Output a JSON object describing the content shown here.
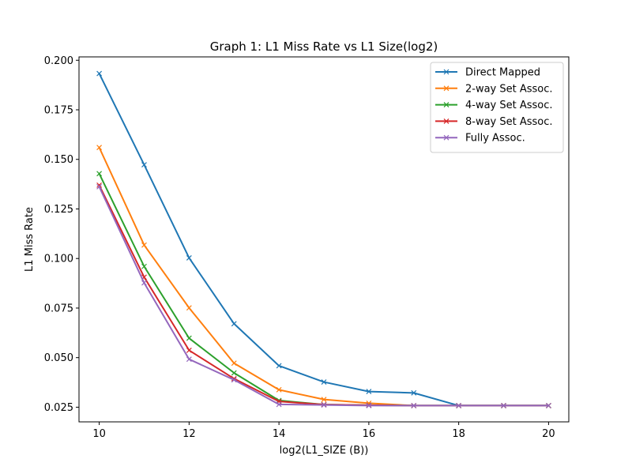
{
  "chart_data": {
    "type": "line",
    "title": "Graph 1: L1 Miss Rate vs L1 Size(log2)",
    "xlabel": "log2(L1_SIZE (B))",
    "ylabel": "L1 Miss Rate",
    "xlim": [
      9.55,
      20.45
    ],
    "ylim": [
      0.0176,
      0.2017
    ],
    "xticks": [
      10,
      12,
      14,
      16,
      18,
      20
    ],
    "xtick_labels": [
      "10",
      "12",
      "14",
      "16",
      "18",
      "20"
    ],
    "yticks": [
      0.025,
      0.05,
      0.075,
      0.1,
      0.125,
      0.15,
      0.175,
      0.2
    ],
    "ytick_labels": [
      "0.025",
      "0.050",
      "0.075",
      "0.100",
      "0.125",
      "0.150",
      "0.175",
      "0.200"
    ],
    "grid": false,
    "legend_position": "top-right",
    "marker": "x",
    "x": [
      10,
      11,
      12,
      13,
      14,
      15,
      16,
      17,
      18,
      19,
      20
    ],
    "series": [
      {
        "name": "Direct Mapped",
        "color": "#1f77b4",
        "values": [
          0.1933,
          0.1473,
          0.1003,
          0.0671,
          0.0459,
          0.0377,
          0.0329,
          0.0322,
          0.0258,
          0.0258,
          0.0258
        ]
      },
      {
        "name": "2-way Set Assoc.",
        "color": "#ff7f0e",
        "values": [
          0.156,
          0.1068,
          0.0751,
          0.0472,
          0.0338,
          0.0289,
          0.027,
          0.0258,
          0.0258,
          0.0258,
          0.0258
        ]
      },
      {
        "name": "4-way Set Assoc.",
        "color": "#2ca02c",
        "values": [
          0.1428,
          0.096,
          0.0598,
          0.0423,
          0.0284,
          0.0263,
          0.026,
          0.0258,
          0.0258,
          0.0258,
          0.0258
        ]
      },
      {
        "name": "8-way Set Assoc.",
        "color": "#d62728",
        "values": [
          0.137,
          0.0906,
          0.0537,
          0.0394,
          0.0279,
          0.0263,
          0.026,
          0.0258,
          0.0258,
          0.0258,
          0.0258
        ]
      },
      {
        "name": "Fully Assoc.",
        "color": "#9467bd",
        "values": [
          0.1362,
          0.0877,
          0.0492,
          0.0388,
          0.0264,
          0.0261,
          0.0258,
          0.0258,
          0.0258,
          0.0258,
          0.0258
        ]
      }
    ]
  }
}
